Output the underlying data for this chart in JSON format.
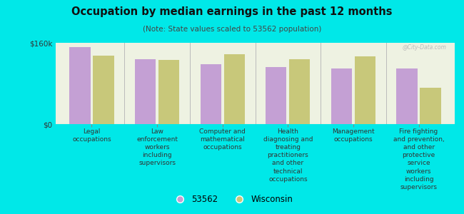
{
  "title": "Occupation by median earnings in the past 12 months",
  "subtitle": "(Note: State values scaled to 53562 population)",
  "background_color": "#00e8e8",
  "plot_bg_color": "#eef2e2",
  "categories": [
    "Legal\noccupations",
    "Law\nenforcement\nworkers\nincluding\nsupervisors",
    "Computer and\nmathematical\noccupations",
    "Health\ndiagnosing and\ntreating\npractitioners\nand other\ntechnical\noccupations",
    "Management\noccupations",
    "Fire fighting\nand prevention,\nand other\nprotective\nservice\nworkers\nincluding\nsupervisors"
  ],
  "values_53562": [
    152000,
    128000,
    118000,
    112000,
    110000,
    110000
  ],
  "values_wisconsin": [
    135000,
    126000,
    138000,
    128000,
    133000,
    72000
  ],
  "color_53562": "#c4a0d4",
  "color_wisconsin": "#c8c87a",
  "ylim": [
    0,
    160000
  ],
  "ytick_labels": [
    "$0",
    "$160k"
  ],
  "legend_53562": "53562",
  "legend_wisconsin": "Wisconsin",
  "watermark": "@City-Data.com"
}
